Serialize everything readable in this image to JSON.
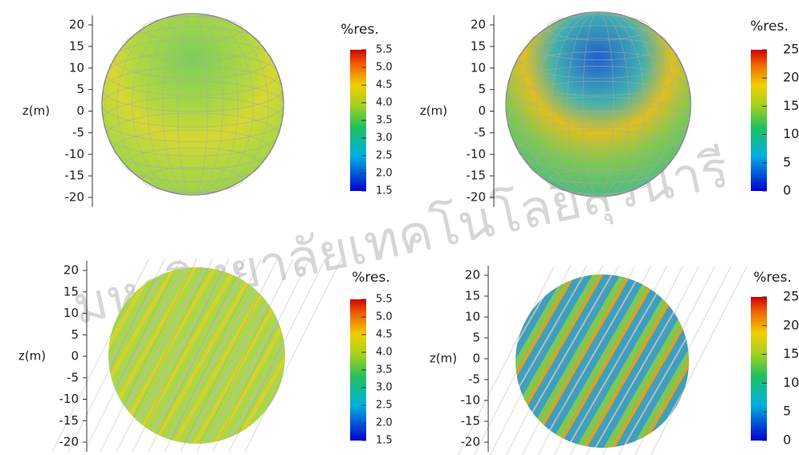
{
  "chart_data": [
    {
      "type": "sphere",
      "ylabel": "z(m)",
      "ylim": [
        -20,
        20
      ],
      "yticks": [
        20,
        15,
        10,
        5,
        0,
        -5,
        -10,
        -15,
        -20
      ],
      "colorbar": {
        "label": "%res.",
        "lim": [
          1.5,
          5.5
        ],
        "ticks": [
          5.5,
          {
            "value": 5,
            "label": "5.0"
          },
          4.5,
          {
            "value": 4,
            "label": "4.0"
          },
          3.5,
          {
            "value": 3,
            "label": "3.0"
          },
          2.5,
          {
            "value": 2,
            "label": "2.0"
          },
          1.5
        ]
      }
    },
    {
      "type": "sphere",
      "ylabel": "z(m)",
      "ylim": [
        -20,
        20
      ],
      "yticks": [
        20,
        15,
        10,
        5,
        0,
        -5,
        -10,
        -15,
        -20
      ],
      "colorbar": {
        "label": "%res.",
        "lim": [
          0,
          25
        ],
        "ticks": [
          25,
          20,
          15,
          10,
          5,
          0
        ]
      }
    },
    {
      "type": "disc",
      "ylabel": "z(m)",
      "ylim": [
        -20,
        20
      ],
      "yticks": [
        20,
        15,
        10,
        5,
        0,
        -5,
        -10,
        -15,
        -20
      ],
      "colorbar": {
        "label": "%res.",
        "lim": [
          1.5,
          5.5
        ],
        "ticks": [
          5.5,
          {
            "value": 5,
            "label": "5.0"
          },
          4.5,
          {
            "value": 4,
            "label": "4.0"
          },
          3.5,
          {
            "value": 3,
            "label": "3.0"
          },
          2.5,
          {
            "value": 2,
            "label": "2.0"
          },
          1.5
        ]
      }
    },
    {
      "type": "disc",
      "ylabel": "z(m)",
      "ylim": [
        -20,
        20
      ],
      "yticks": [
        20,
        15,
        10,
        5,
        0,
        -5,
        -10,
        -15,
        -20
      ],
      "colorbar": {
        "label": "%res.",
        "lim": [
          0,
          25
        ],
        "ticks": [
          25,
          20,
          15,
          10,
          5,
          0
        ]
      }
    }
  ],
  "watermark": "มหาวิทยาลัยเทคโนโลยีสุรนารี"
}
